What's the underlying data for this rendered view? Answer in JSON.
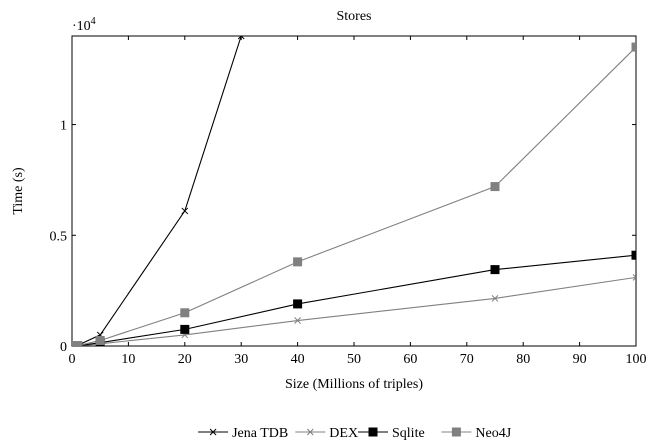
{
  "chart_data": {
    "type": "line",
    "title": "Stores",
    "xlabel": "Size (Millions of triples)",
    "ylabel": "Time (s)",
    "y_multiplier": "·10",
    "y_multiplier_exponent": "4",
    "xlim": [
      0,
      100
    ],
    "ylim": [
      0,
      14000
    ],
    "x_ticks": [
      0,
      10,
      20,
      30,
      40,
      50,
      60,
      70,
      80,
      90,
      100
    ],
    "x_tick_labels": [
      "0",
      "10",
      "20",
      "30",
      "40",
      "50",
      "60",
      "70",
      "80",
      "90",
      "100"
    ],
    "y_ticks": [
      0,
      5000,
      10000
    ],
    "y_tick_labels": [
      "0",
      "0.5",
      "1"
    ],
    "grid": false,
    "legend_position": "bottom-center",
    "series": [
      {
        "name": "Jena TDB",
        "color": "#000000",
        "marker": "x-cross",
        "x": [
          0.1,
          1,
          5,
          20,
          30
        ],
        "y": [
          0,
          30,
          500,
          6100,
          14000
        ]
      },
      {
        "name": "DEX",
        "color": "#808080",
        "marker": "x-cross",
        "x": [
          0.1,
          1,
          5,
          20,
          40,
          75,
          100
        ],
        "y": [
          0,
          10,
          100,
          500,
          1150,
          2150,
          3100
        ]
      },
      {
        "name": "Sqlite",
        "color": "#000000",
        "marker": "square",
        "x": [
          0.1,
          1,
          5,
          20,
          40,
          75,
          100
        ],
        "y": [
          0,
          10,
          150,
          750,
          1900,
          3450,
          4100
        ]
      },
      {
        "name": "Neo4J",
        "color": "#808080",
        "marker": "square",
        "x": [
          0.1,
          1,
          5,
          20,
          40,
          75,
          100
        ],
        "y": [
          0,
          15,
          250,
          1500,
          3800,
          7200,
          13500
        ]
      }
    ]
  }
}
